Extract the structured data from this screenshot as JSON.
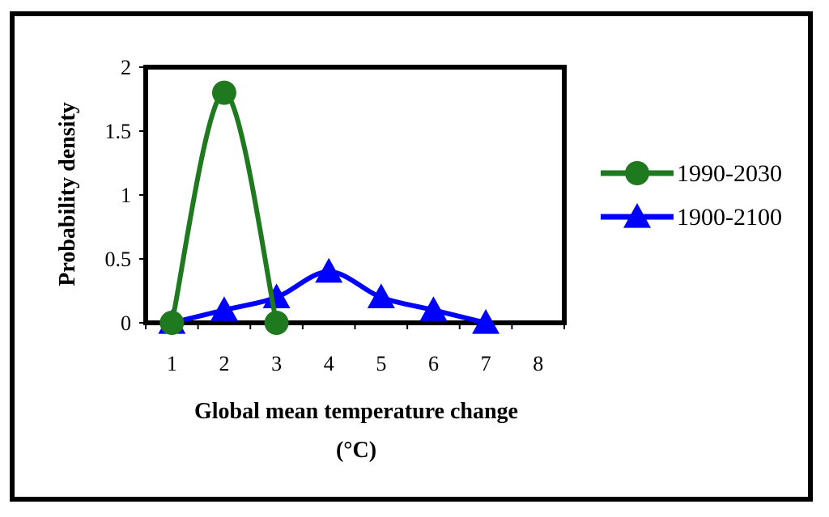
{
  "chart_data": {
    "type": "line",
    "xlabel": "Global mean temperature change",
    "xlabel_unit": "(°C)",
    "ylabel": "Probability density",
    "x_ticks": [
      "1",
      "2",
      "3",
      "4",
      "5",
      "6",
      "7",
      "8"
    ],
    "y_ticks": [
      "0",
      "0.5",
      "1",
      "1.5",
      "2"
    ],
    "xlim": [
      0.5,
      8.5
    ],
    "ylim": [
      0,
      2
    ],
    "grid": false,
    "legend_position": "right",
    "series": [
      {
        "name": "1990-2030",
        "marker": "circle",
        "color": "#1f7a1f",
        "x": [
          1,
          2,
          3
        ],
        "values": [
          0,
          1.8,
          0
        ]
      },
      {
        "name": "1900-2100",
        "marker": "triangle",
        "color": "#0000ff",
        "x": [
          1,
          2,
          3,
          4,
          5,
          6,
          7
        ],
        "values": [
          0,
          0.1,
          0.2,
          0.4,
          0.2,
          0.1,
          0
        ]
      }
    ]
  }
}
